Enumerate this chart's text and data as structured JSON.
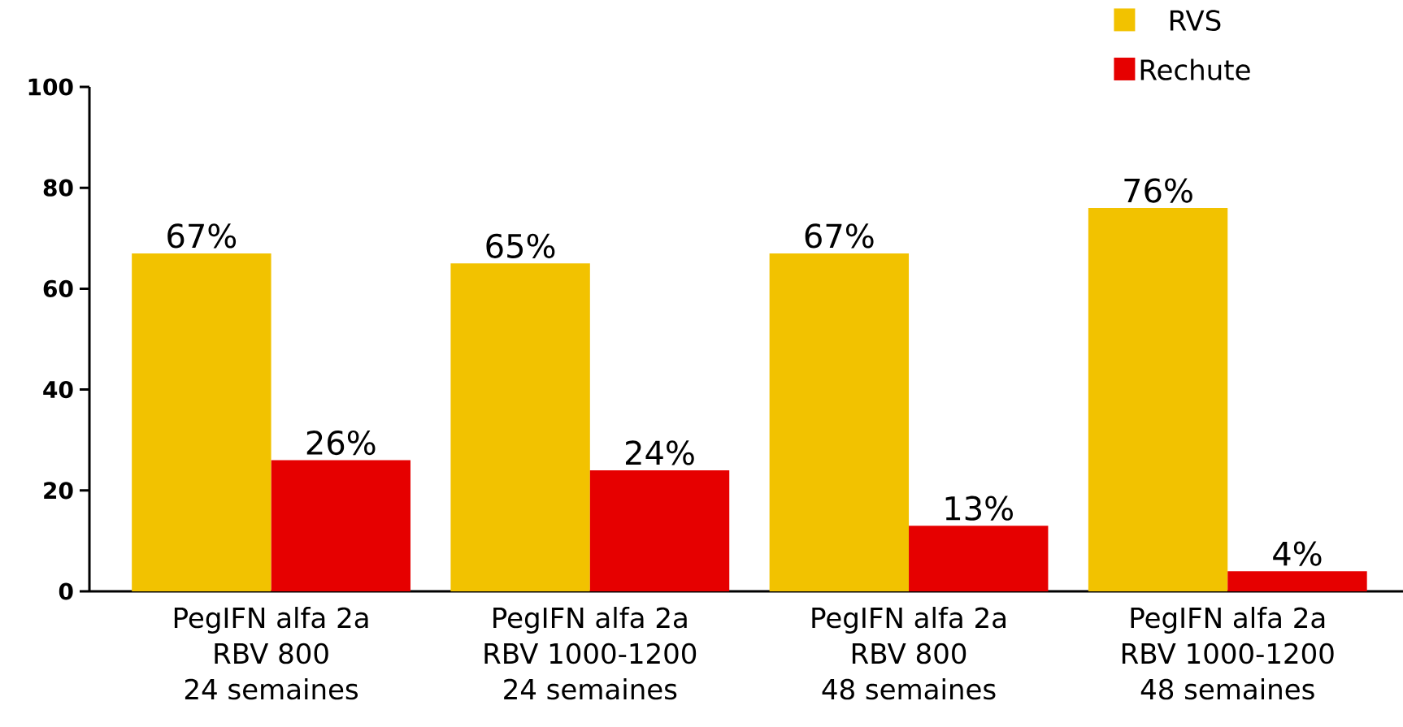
{
  "chart_data": {
    "type": "bar",
    "categories": [
      "PegIFN alfa 2a\nRBV 800\n24 semaines",
      "PegIFN alfa 2a\nRBV 1000-1200\n24 semaines",
      "PegIFN alfa 2a\nRBV 800\n48 semaines",
      "PegIFN alfa 2a\nRBV 1000-1200\n48 semaines"
    ],
    "series": [
      {
        "name": "RVS",
        "color": "#f2c200",
        "values": [
          67,
          65,
          67,
          76
        ],
        "value_labels": [
          "67%",
          "65%",
          "67%",
          "76%"
        ]
      },
      {
        "name": "Rechute",
        "color": "#e60000",
        "values": [
          26,
          24,
          13,
          4
        ],
        "value_labels": [
          "26%",
          "24%",
          "13%",
          "4%"
        ]
      }
    ],
    "ylim": [
      0,
      100
    ],
    "yticks": [
      0,
      20,
      40,
      60,
      80,
      100
    ],
    "grid": false,
    "legend": "top right"
  }
}
